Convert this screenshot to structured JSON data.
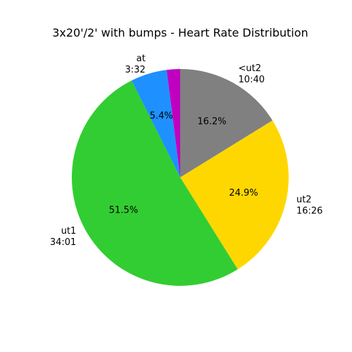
{
  "chart_data": {
    "type": "pie",
    "title": "3x20'/2' with bumps - Heart Rate Distribution",
    "start_angle_deg": 90,
    "direction": "clockwise",
    "slices": [
      {
        "label": "<ut2",
        "time": "10:40",
        "value": 16.2,
        "pct_label": "16.2%",
        "color": "#808080"
      },
      {
        "label": "ut2",
        "time": "16:26",
        "value": 24.9,
        "pct_label": "24.9%",
        "color": "#FFD700"
      },
      {
        "label": "ut1",
        "time": "34:01",
        "value": 51.5,
        "pct_label": "51.5%",
        "color": "#32CD32"
      },
      {
        "label": "at",
        "time": "3:32",
        "value": 5.4,
        "pct_label": "5.4%",
        "color": "#1E90FF"
      },
      {
        "label": "",
        "time": "",
        "value": 2.0,
        "pct_label": "",
        "color": "#C000C0"
      }
    ]
  }
}
